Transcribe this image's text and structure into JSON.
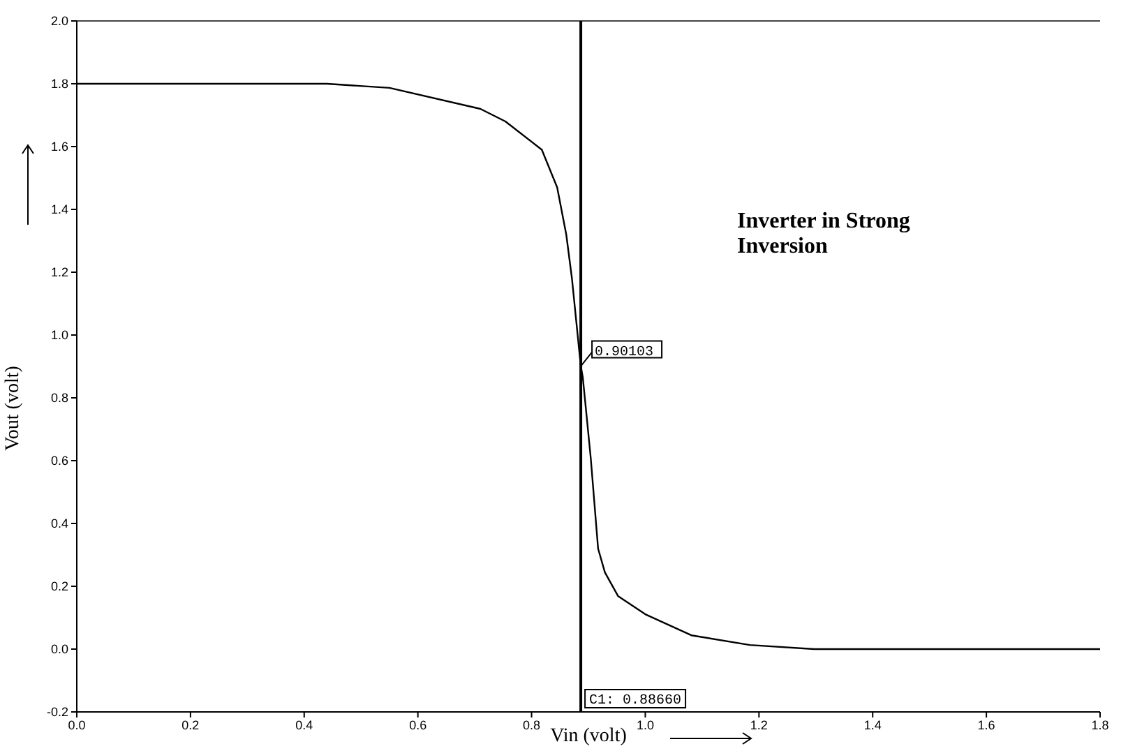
{
  "chart_data": {
    "type": "line",
    "xlabel": "Vin (volt)",
    "ylabel": "Vout (volt)",
    "x": [
      0,
      0.2,
      0.44,
      0.55,
      0.71,
      0.754,
      0.818,
      0.845,
      0.861,
      0.871,
      0.8866,
      0.89,
      0.904,
      0.917,
      0.929,
      0.952,
      1.0,
      1.081,
      1.184,
      1.297,
      1.5,
      1.8
    ],
    "series": [
      {
        "color": "#000000",
        "values": [
          1.8,
          1.8,
          1.8,
          1.787,
          1.72,
          1.68,
          1.59,
          1.47,
          1.32,
          1.18,
          0.9,
          0.867,
          0.61,
          0.32,
          0.244,
          0.169,
          0.111,
          0.044,
          0.013,
          0,
          0,
          0
        ]
      }
    ],
    "xlim": [
      0,
      1.8
    ],
    "xticks": [
      {
        "value": 0,
        "label": "0.0"
      },
      0.2,
      0.4,
      0.6,
      0.8,
      {
        "value": 1,
        "label": "1.0"
      },
      1.2,
      1.4,
      1.6,
      1.8
    ],
    "ylim": [
      -0.2,
      2.0
    ],
    "yticks": [
      -0.2,
      {
        "value": 0,
        "label": "0.0"
      },
      0.2,
      0.4,
      0.6,
      0.8,
      {
        "value": 1,
        "label": "1.0"
      },
      1.2,
      1.4,
      1.6,
      1.8,
      {
        "value": 2,
        "label": "2.0"
      }
    ],
    "ref_lines": [
      {
        "axis": "x",
        "value": 0.8866,
        "label": "C1: 0.88660",
        "color": "#000000"
      }
    ],
    "annotations": [
      "Inverter in Strong Inversion",
      {
        "text": "0.90103",
        "x": 0.8866,
        "y": 0.90103
      }
    ],
    "grid": false,
    "legend": false,
    "marker": "none",
    "line_style": "solid"
  }
}
